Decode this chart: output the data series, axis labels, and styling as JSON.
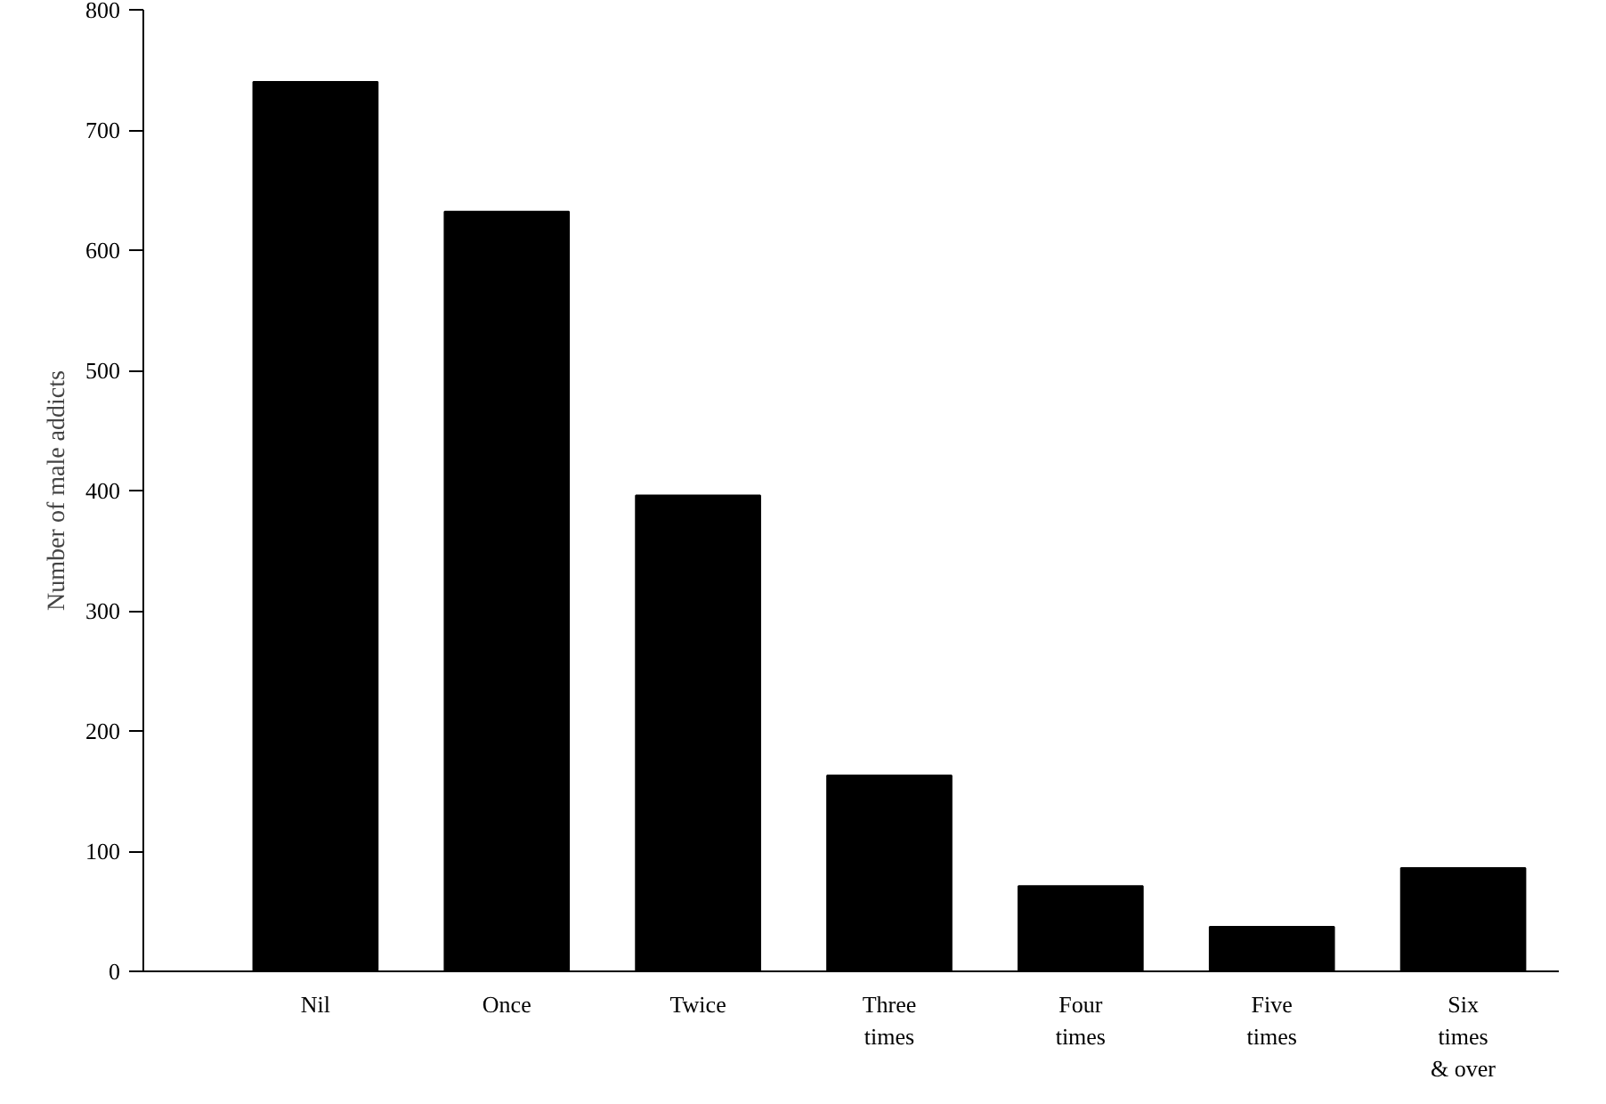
{
  "chart_data": {
    "type": "bar",
    "ylabel": "Number of male addicts",
    "categories": [
      "Nil",
      "Once",
      "Twice",
      "Three\ntimes",
      "Four\ntimes",
      "Five\ntimes",
      "Six\ntimes\n& over"
    ],
    "values": [
      740,
      632,
      396,
      163,
      71,
      37,
      86
    ],
    "color": "#000000",
    "ylim": [
      0,
      800
    ],
    "yticks": [
      0,
      100,
      200,
      300,
      400,
      500,
      600,
      700,
      800
    ],
    "grid": false
  }
}
